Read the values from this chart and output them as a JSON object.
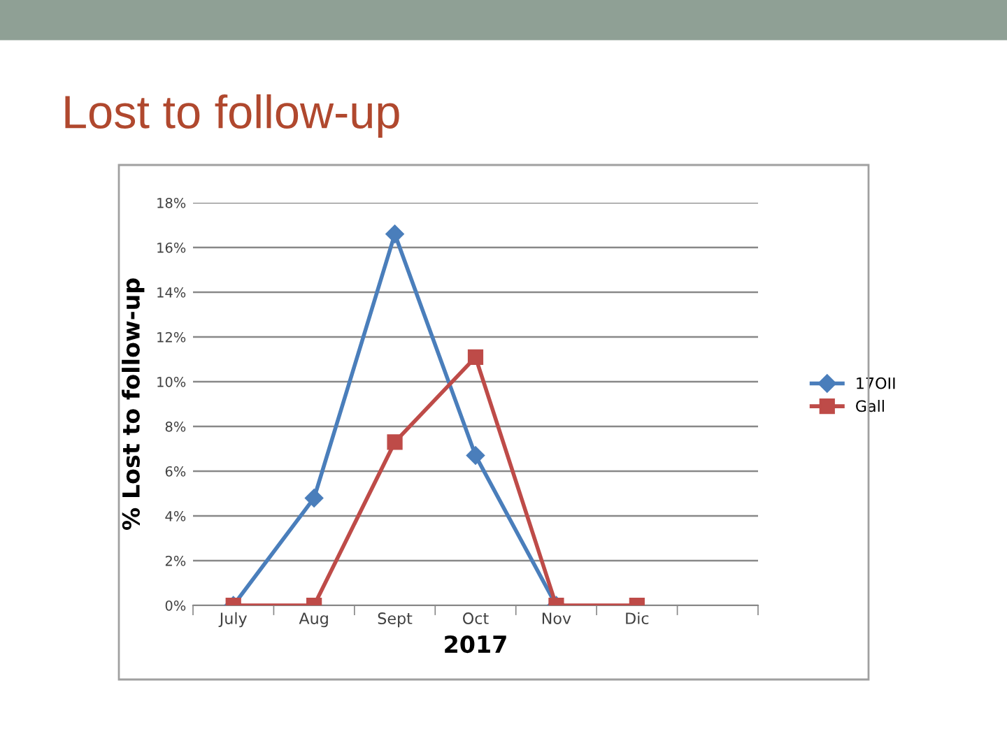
{
  "chart_data": {
    "type": "line",
    "title": "Lost to follow-up",
    "xlabel": "2017",
    "ylabel": "% Lost to follow-up",
    "categories": [
      "July",
      "Aug",
      "Sept",
      "Oct",
      "Nov",
      "Dic",
      null
    ],
    "series": [
      {
        "name": "17OII",
        "color": "#4a7ebb",
        "marker": "diamond",
        "values": [
          0,
          4.8,
          16.6,
          6.7,
          0,
          null,
          null
        ]
      },
      {
        "name": "Gall",
        "color": "#be4b48",
        "marker": "square",
        "values": [
          0,
          0,
          7.3,
          11.1,
          0,
          0,
          null
        ]
      }
    ],
    "ylim": [
      0,
      18
    ],
    "yticks": [
      {
        "value": 0,
        "label": "0%"
      },
      {
        "value": 2,
        "label": "2%"
      },
      {
        "value": 4,
        "label": "4%"
      },
      {
        "value": 6,
        "label": "6%"
      },
      {
        "value": 8,
        "label": "8%"
      },
      {
        "value": 10,
        "label": "10%"
      },
      {
        "value": 12,
        "label": "12%"
      },
      {
        "value": 14,
        "label": "14%"
      },
      {
        "value": 16,
        "label": "16%"
      },
      {
        "value": 18,
        "label": "18%"
      }
    ],
    "grid": "y",
    "legend": "right"
  }
}
